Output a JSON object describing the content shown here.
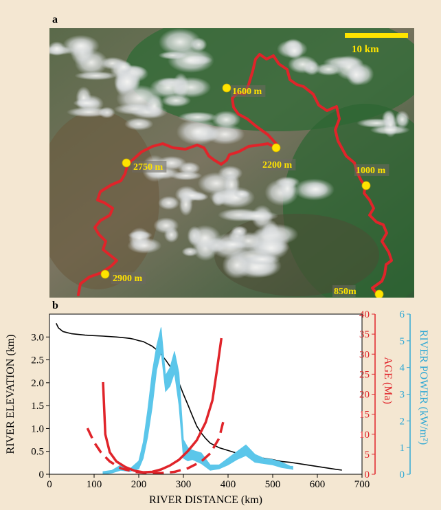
{
  "panel_a": {
    "label": "a",
    "scale_bar": "10 km",
    "markers": [
      {
        "label": "1600 m"
      },
      {
        "label": "2200 m"
      },
      {
        "label": "2750 m"
      },
      {
        "label": "1000 m"
      },
      {
        "label": "2900 m"
      },
      {
        "label": "850m"
      }
    ],
    "colors": {
      "river": "#e0242a",
      "marker": "#ffe400",
      "label_text": "#ffe400"
    }
  },
  "panel_b": {
    "label": "b"
  },
  "chart_data": {
    "type": "line",
    "xlabel": "RIVER DISTANCE (km)",
    "xlim": [
      0,
      700
    ],
    "xticks": [
      "0",
      "100",
      "200",
      "300",
      "400",
      "500",
      "600",
      "700"
    ],
    "axes": {
      "left": {
        "label": "RIVER ELEVATION (km)",
        "ticks": [
          "0",
          "0.5",
          "1.0",
          "1.5",
          "2.0",
          "2.5",
          "3.0"
        ],
        "lim": [
          0,
          3.5
        ],
        "color": "#000000"
      },
      "right1": {
        "label": "AGE (Ma)",
        "ticks": [
          "0",
          "5",
          "10",
          "15",
          "20",
          "25",
          "30",
          "35",
          "40"
        ],
        "lim": [
          0,
          40
        ],
        "color": "#e0242a"
      },
      "right2": {
        "label": "RIVER POWER (kW/m²)",
        "ticks": [
          "0",
          "1",
          "2",
          "3",
          "4",
          "5",
          "6"
        ],
        "lim": [
          0,
          6
        ],
        "color": "#2fa8d4"
      }
    },
    "series": [
      {
        "axis": "left",
        "color": "#000000",
        "style": "solid",
        "x": [
          15,
          20,
          30,
          50,
          80,
          120,
          150,
          170,
          180,
          190,
          200,
          210,
          220,
          230,
          240,
          250,
          260,
          270,
          280,
          290,
          300,
          310,
          320,
          330,
          340,
          350,
          360,
          380,
          400,
          420,
          440,
          460,
          480,
          500,
          520,
          540,
          560,
          580,
          600,
          620,
          640,
          655
        ],
        "y": [
          3.3,
          3.2,
          3.12,
          3.07,
          3.04,
          3.02,
          3.0,
          2.98,
          2.97,
          2.95,
          2.92,
          2.9,
          2.85,
          2.8,
          2.72,
          2.62,
          2.5,
          2.36,
          2.2,
          2.0,
          1.75,
          1.52,
          1.28,
          1.05,
          0.9,
          0.78,
          0.68,
          0.58,
          0.52,
          0.46,
          0.42,
          0.38,
          0.35,
          0.32,
          0.28,
          0.26,
          0.23,
          0.2,
          0.17,
          0.14,
          0.11,
          0.09
        ]
      },
      {
        "axis": "right2",
        "color": "#5bc6ea",
        "style": "band",
        "x": [
          120,
          140,
          160,
          180,
          200,
          210,
          220,
          230,
          240,
          250,
          260,
          270,
          280,
          290,
          300,
          310,
          320,
          340,
          360,
          380,
          400,
          420,
          440,
          460,
          480,
          500,
          520,
          540,
          545
        ],
        "y_low": [
          0,
          0.05,
          0.15,
          0.1,
          0.2,
          0.6,
          1.4,
          2.5,
          3.9,
          4.6,
          3.1,
          3.3,
          3.8,
          2.6,
          0.6,
          0.5,
          0.55,
          0.4,
          0.15,
          0.2,
          0.35,
          0.55,
          0.7,
          0.45,
          0.4,
          0.35,
          0.25,
          0.2,
          0.18
        ],
        "y_high": [
          0.1,
          0.15,
          0.35,
          0.2,
          0.5,
          1.2,
          2.4,
          3.8,
          4.8,
          5.5,
          3.7,
          4.0,
          4.6,
          3.8,
          1.3,
          1.0,
          0.9,
          0.8,
          0.35,
          0.35,
          0.6,
          0.85,
          1.1,
          0.75,
          0.6,
          0.55,
          0.45,
          0.3,
          0.3
        ]
      },
      {
        "axis": "right1",
        "color": "#e0242a",
        "style": "solid",
        "x": [
          120,
          125,
          135,
          150,
          170,
          190,
          210,
          230,
          250,
          270,
          290,
          310,
          330,
          350,
          365,
          375,
          385
        ],
        "y": [
          23,
          10,
          5.5,
          3.2,
          1.8,
          0.9,
          0.5,
          0.6,
          1.2,
          2.2,
          3.6,
          5.8,
          8.5,
          13,
          18.5,
          26,
          34
        ]
      },
      {
        "axis": "right1",
        "color": "#e0242a",
        "style": "dashed",
        "x": [
          85,
          100,
          115,
          135,
          160,
          190,
          220,
          250,
          280,
          310,
          340,
          360,
          380,
          390
        ],
        "y": [
          11.5,
          8,
          5.5,
          3.2,
          1.5,
          0.6,
          0.3,
          0.3,
          0.6,
          1.5,
          3.2,
          5.2,
          9,
          13.5
        ]
      }
    ]
  }
}
